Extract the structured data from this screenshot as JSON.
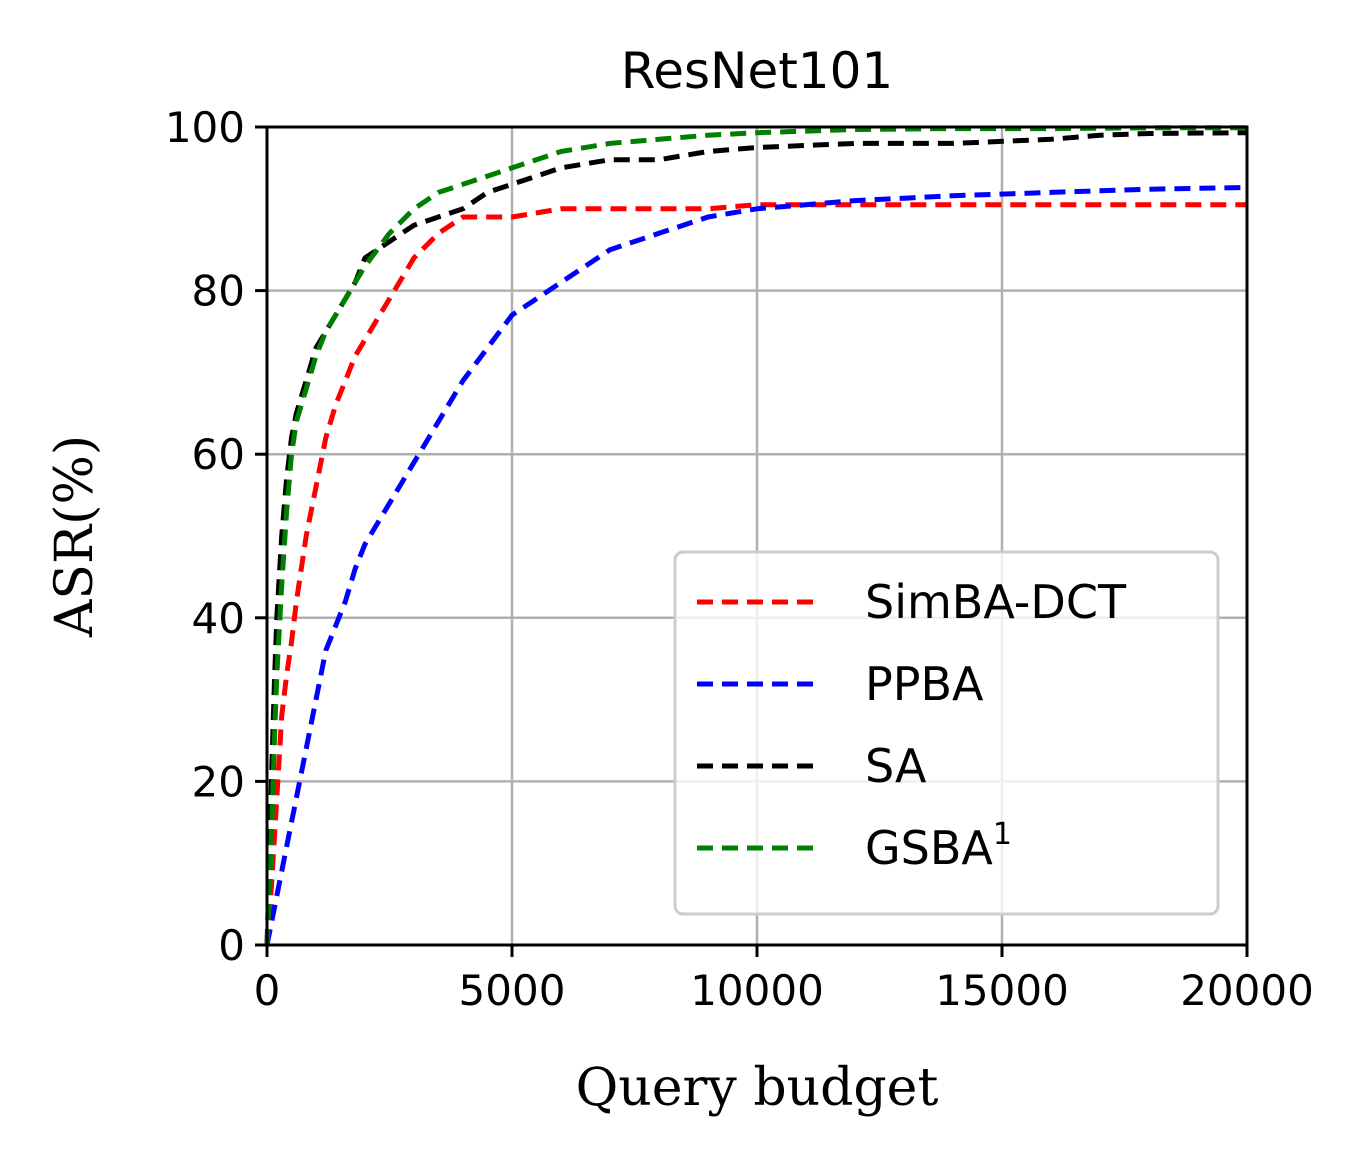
{
  "chart_data": {
    "type": "line",
    "title": "ResNet101",
    "xlabel": "Query budget",
    "ylabel": "ASR(%)",
    "xlim": [
      0,
      20000
    ],
    "ylim": [
      0,
      100
    ],
    "xticks": [
      0,
      5000,
      10000,
      15000,
      20000
    ],
    "yticks": [
      0,
      20,
      40,
      60,
      80,
      100
    ],
    "grid": true,
    "legend_position": "lower-right",
    "series": [
      {
        "name": "SimBA-DCT",
        "color": "#ff0000",
        "x": [
          0,
          100,
          200,
          300,
          400,
          500,
          600,
          800,
          1000,
          1200,
          1400,
          1600,
          1800,
          2000,
          2300,
          2600,
          3000,
          3500,
          4000,
          4500,
          5000,
          6000,
          7000,
          8000,
          9000,
          10000,
          12000,
          14000,
          16000,
          18000,
          20000
        ],
        "y": [
          0,
          8,
          18,
          28,
          33,
          37,
          42,
          50,
          56,
          62,
          66,
          69,
          72,
          74,
          77,
          80,
          84,
          87,
          89,
          89,
          89,
          90,
          90,
          90,
          90,
          90.5,
          90.5,
          90.5,
          90.5,
          90.5,
          90.5
        ]
      },
      {
        "name": "PPBA",
        "color": "#0000ff",
        "x": [
          0,
          100,
          200,
          300,
          400,
          500,
          600,
          800,
          1000,
          1200,
          1400,
          1600,
          1800,
          2000,
          2300,
          2600,
          3000,
          3500,
          4000,
          4500,
          5000,
          5500,
          6000,
          6500,
          7000,
          7500,
          8000,
          9000,
          10000,
          11000,
          12000,
          13000,
          14000,
          15000,
          16000,
          17000,
          18000,
          19000,
          20000
        ],
        "y": [
          0,
          3,
          6,
          9,
          12,
          15,
          18,
          24,
          30,
          36,
          39,
          42,
          46,
          49,
          52,
          55,
          59,
          64,
          69,
          73,
          77,
          79,
          81,
          83,
          85,
          86,
          87,
          89,
          90,
          90.5,
          91,
          91.3,
          91.6,
          91.8,
          92,
          92.2,
          92.4,
          92.5,
          92.6
        ]
      },
      {
        "name": "SA",
        "color": "#000000",
        "x": [
          0,
          50,
          100,
          150,
          200,
          300,
          400,
          500,
          600,
          800,
          1000,
          1200,
          1400,
          1600,
          1800,
          2000,
          2500,
          3000,
          3500,
          4000,
          4500,
          5000,
          6000,
          7000,
          8000,
          9000,
          10000,
          12000,
          14000,
          16000,
          17000,
          18000,
          20000
        ],
        "y": [
          0,
          10,
          22,
          32,
          40,
          50,
          57,
          62,
          65,
          69,
          73,
          75,
          77,
          79,
          81,
          84,
          86,
          88,
          89,
          90,
          92,
          93,
          95,
          96,
          96,
          97,
          97.5,
          98,
          98,
          98.5,
          99,
          99.2,
          99.3
        ]
      },
      {
        "name": "GSBA¹",
        "color": "#008000",
        "x": [
          0,
          50,
          100,
          150,
          200,
          300,
          400,
          500,
          600,
          800,
          1000,
          1200,
          1400,
          1600,
          1800,
          2000,
          2500,
          3000,
          3500,
          4000,
          4500,
          5000,
          6000,
          7000,
          8000,
          9000,
          10000,
          11000,
          12000,
          14000,
          16000,
          18000,
          20000
        ],
        "y": [
          0,
          6,
          15,
          25,
          33,
          44,
          53,
          60,
          64,
          68,
          72,
          75,
          77,
          79,
          81,
          83,
          87,
          90,
          92,
          93,
          94,
          95,
          97,
          98,
          98.5,
          99,
          99.3,
          99.5,
          99.7,
          99.8,
          99.8,
          99.9,
          99.9
        ]
      }
    ]
  }
}
